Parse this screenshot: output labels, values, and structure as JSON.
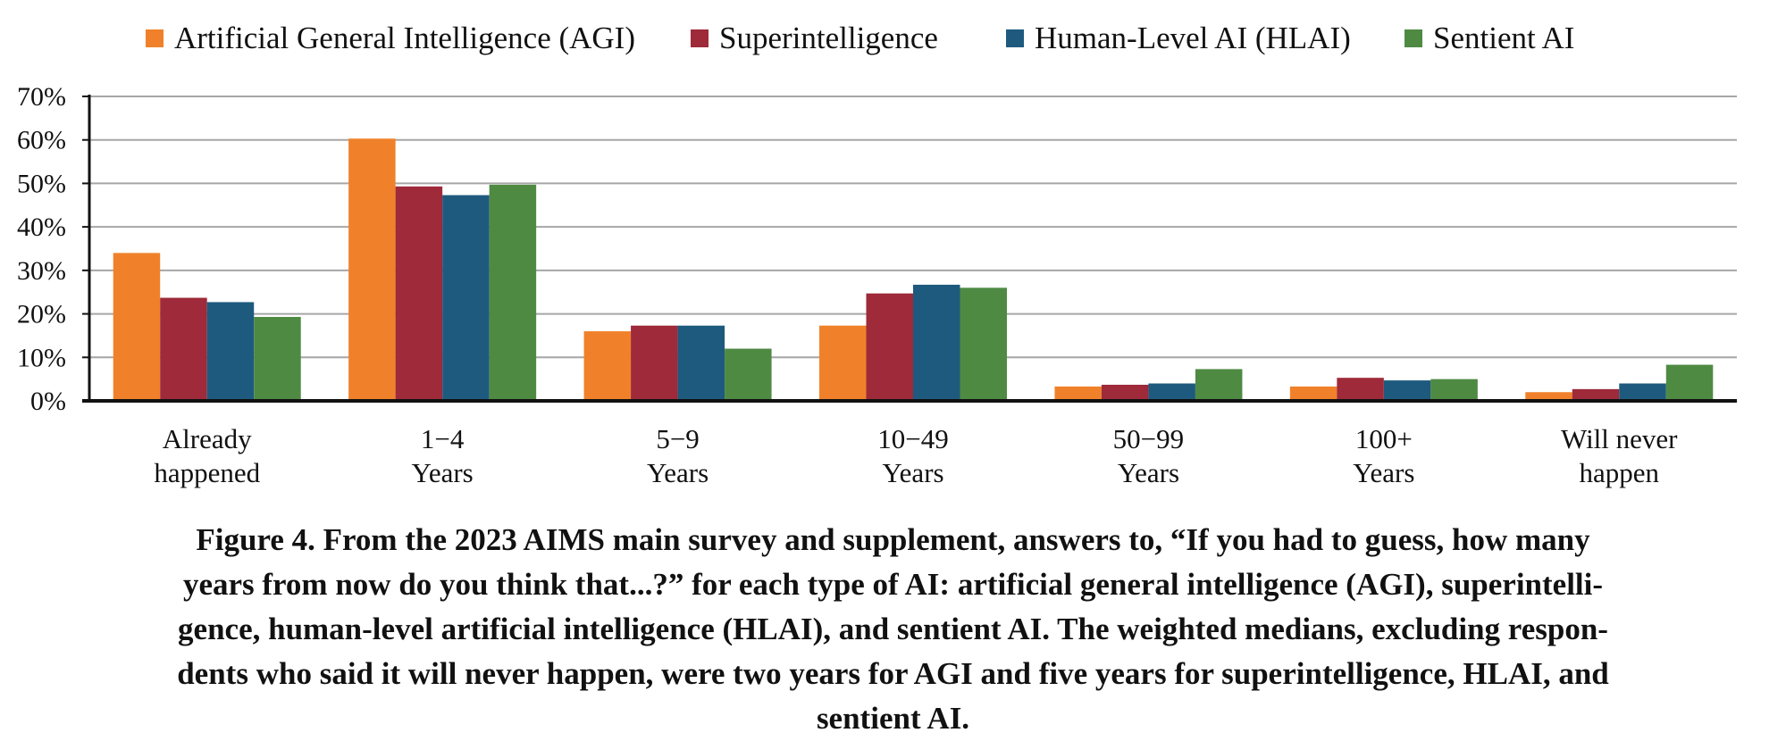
{
  "chart_data": {
    "type": "bar",
    "categories": [
      [
        "Already",
        "happened"
      ],
      [
        "1−4",
        "Years"
      ],
      [
        "5−9",
        "Years"
      ],
      [
        "10−49",
        "Years"
      ],
      [
        "50−99",
        "Years"
      ],
      [
        "100+",
        "Years"
      ],
      [
        "Will never",
        "happen"
      ]
    ],
    "series": [
      {
        "name": "Artificial General Intelligence (AGI)",
        "color": "#f0812a",
        "values": [
          34,
          60.3,
          16,
          17.3,
          3.3,
          3.3,
          2
        ]
      },
      {
        "name": "Superintelligence",
        "color": "#9e2a3a",
        "values": [
          23.7,
          49.3,
          17.3,
          24.7,
          3.7,
          5.3,
          2.7
        ]
      },
      {
        "name": "Human-Level AI (HLAI)",
        "color": "#1e5a7e",
        "values": [
          22.7,
          47.3,
          17.3,
          26.7,
          4,
          4.7,
          4
        ]
      },
      {
        "name": "Sentient AI",
        "color": "#4f8a43",
        "values": [
          19.3,
          49.7,
          12,
          26,
          7.3,
          5,
          8.3
        ]
      }
    ],
    "ylim": [
      0,
      70
    ],
    "yticks": [
      "0%",
      "10%",
      "20%",
      "30%",
      "40%",
      "50%",
      "60%",
      "70%"
    ],
    "grid": true,
    "legend_position": "top",
    "xlabel": "",
    "ylabel": ""
  },
  "caption": {
    "lines": [
      "Figure 4. From the 2023 AIMS main survey and supplement, answers to, “If you had to guess, how many",
      "years from now do you think that...?” for each type of AI: artificial general intelligence (AGI), superintelli-",
      "gence, human-level artificial intelligence (HLAI), and sentient AI. The weighted medians, excluding respon-",
      "dents who said it will never happen, were two years for AGI and five years for superintelligence, HLAI, and",
      "sentient AI."
    ]
  }
}
